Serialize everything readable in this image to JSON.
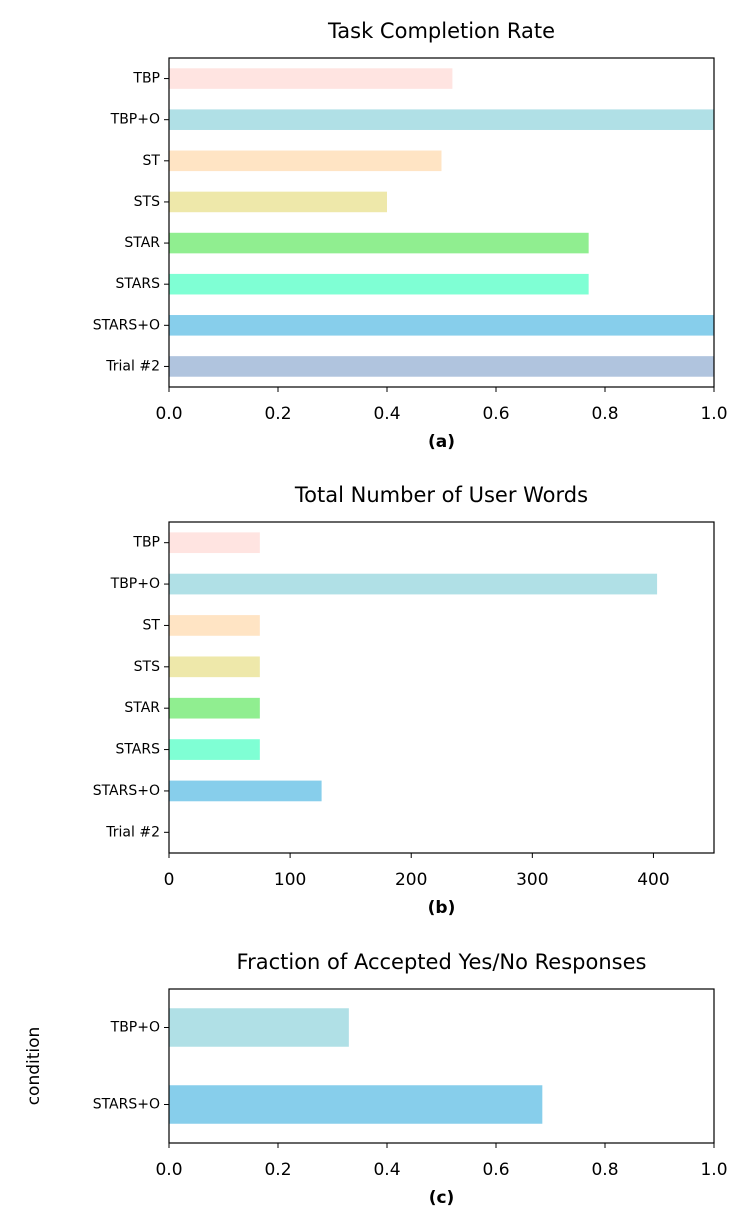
{
  "chart_data": [
    {
      "type": "bar",
      "orientation": "horizontal",
      "title": "Task Completion Rate",
      "xlabel": "(a)",
      "categories": [
        "TBP",
        "TBP+O",
        "ST",
        "STS",
        "STAR",
        "STARS",
        "STARS+O",
        "Trial #2"
      ],
      "values": [
        0.52,
        1.0,
        0.5,
        0.4,
        0.77,
        0.77,
        1.0,
        1.0
      ],
      "colors": [
        "#ffe4e1",
        "#b0e0e6",
        "#ffe4c4",
        "#eee8aa",
        "#90ee90",
        "#7fffd4",
        "#87ceeb",
        "#b0c4de"
      ],
      "xlim": [
        0,
        1
      ],
      "xticks": [
        {
          "value": 0,
          "label": "0.0"
        },
        {
          "value": 0.2,
          "label": "0.2"
        },
        {
          "value": 0.4,
          "label": "0.4"
        },
        {
          "value": 0.6,
          "label": "0.6"
        },
        {
          "value": 0.8,
          "label": "0.8"
        },
        {
          "value": 1,
          "label": "1.0"
        }
      ]
    },
    {
      "type": "bar",
      "orientation": "horizontal",
      "title": "Total Number of User Words",
      "xlabel": "(b)",
      "categories": [
        "TBP",
        "TBP+O",
        "ST",
        "STS",
        "STAR",
        "STARS",
        "STARS+O",
        "Trial #2"
      ],
      "values": [
        75,
        403,
        75,
        75,
        75,
        75,
        126,
        0
      ],
      "colors": [
        "#ffe4e1",
        "#b0e0e6",
        "#ffe4c4",
        "#eee8aa",
        "#90ee90",
        "#7fffd4",
        "#87ceeb",
        "#b0c4de"
      ],
      "xlim": [
        0,
        450
      ],
      "xticks": [
        0,
        100,
        200,
        300,
        400
      ]
    },
    {
      "type": "bar",
      "orientation": "horizontal",
      "title": "Fraction of Accepted Yes/No Responses",
      "xlabel": "(c)",
      "ylabel": "condition",
      "categories": [
        "TBP+O",
        "STARS+O"
      ],
      "values": [
        0.33,
        0.685
      ],
      "colors": [
        "#b0e0e6",
        "#87ceeb"
      ],
      "xlim": [
        0,
        1
      ],
      "xticks": [
        {
          "value": 0,
          "label": "0.0"
        },
        {
          "value": 0.2,
          "label": "0.2"
        },
        {
          "value": 0.4,
          "label": "0.4"
        },
        {
          "value": 0.6,
          "label": "0.6"
        },
        {
          "value": 0.8,
          "label": "0.8"
        },
        {
          "value": 1,
          "label": "1.0"
        }
      ]
    }
  ]
}
